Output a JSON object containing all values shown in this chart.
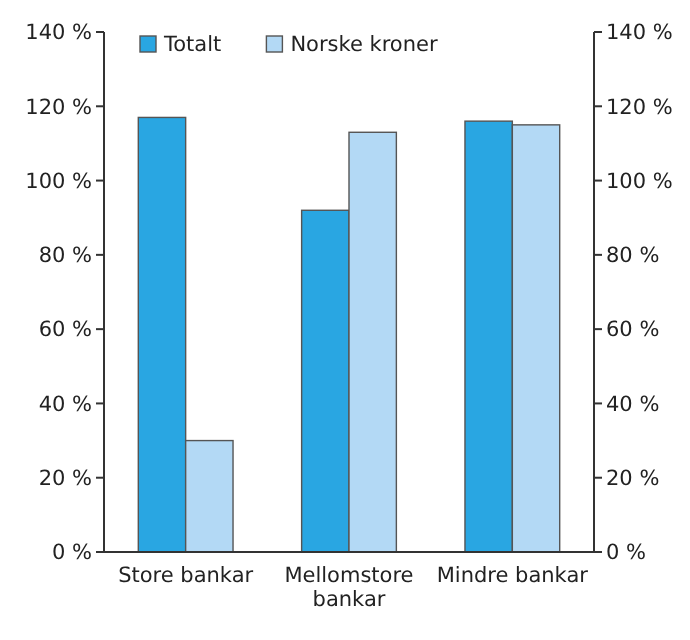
{
  "chart_data": {
    "type": "bar",
    "categories": [
      "Store bankar",
      "Mellomstore bankar",
      "Mindre bankar"
    ],
    "series": [
      {
        "name": "Totalt",
        "color": "#29a6e2",
        "values": [
          117,
          92,
          116
        ]
      },
      {
        "name": "Norske kroner",
        "color": "#b3d9f5",
        "values": [
          30,
          113,
          115
        ]
      }
    ],
    "ylim": [
      0,
      140
    ],
    "yticks": [
      {
        "value": 0,
        "label": "0 %"
      },
      {
        "value": 20,
        "label": "20 %"
      },
      {
        "value": 40,
        "label": "40 %"
      },
      {
        "value": 60,
        "label": "60 %"
      },
      {
        "value": 80,
        "label": "80 %"
      },
      {
        "value": 100,
        "label": "100 %"
      },
      {
        "value": 120,
        "label": "120 %"
      },
      {
        "value": 140,
        "label": "140 %"
      }
    ],
    "y2lim": [
      0,
      140
    ],
    "y2ticks": [
      {
        "value": 0,
        "label": "0 %"
      },
      {
        "value": 20,
        "label": "20 %"
      },
      {
        "value": 40,
        "label": "40 %"
      },
      {
        "value": 60,
        "label": "60 %"
      },
      {
        "value": 80,
        "label": "80 %"
      },
      {
        "value": 100,
        "label": "100 %"
      },
      {
        "value": 120,
        "label": "120 %"
      },
      {
        "value": 140,
        "label": "140 %"
      }
    ],
    "legend": "top left",
    "grid": false
  }
}
